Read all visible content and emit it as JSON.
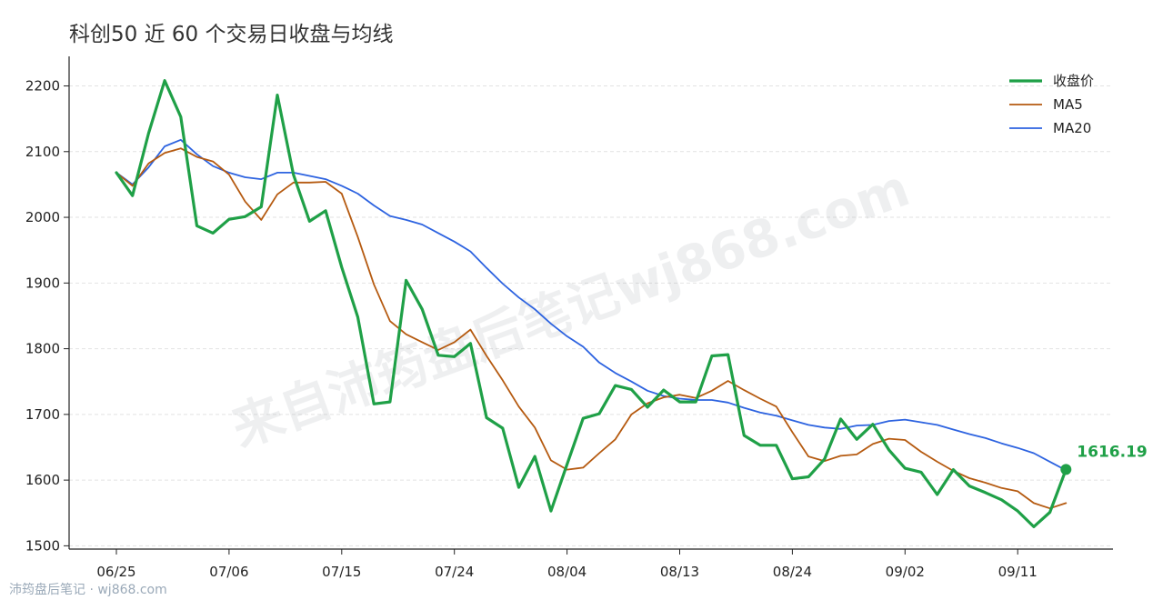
{
  "chart_data": {
    "type": "line",
    "title": "科创50 近 60 个交易日收盘与均线",
    "xlabel": "",
    "ylabel": "",
    "ylim": [
      1495,
      2245
    ],
    "yticks": [
      1500,
      1600,
      1700,
      1800,
      1900,
      2000,
      2100,
      2200
    ],
    "grid": true,
    "legend_position": "top-right",
    "x_tick_labels": [
      {
        "index": 0,
        "label": "06/25"
      },
      {
        "index": 7,
        "label": "07/06"
      },
      {
        "index": 14,
        "label": "07/15"
      },
      {
        "index": 21,
        "label": "07/24"
      },
      {
        "index": 28,
        "label": "08/04"
      },
      {
        "index": 35,
        "label": "08/13"
      },
      {
        "index": 42,
        "label": "08/24"
      },
      {
        "index": 49,
        "label": "09/02"
      },
      {
        "index": 56,
        "label": "09/11"
      }
    ],
    "series": [
      {
        "name": "收盘价",
        "color": "#1fa047",
        "values": [
          2068,
          2033,
          2128,
          2208,
          2153,
          1987,
          1976,
          1997,
          2001,
          2016,
          2186,
          2065,
          1994,
          2010,
          1924,
          1848,
          1716,
          1719,
          1904,
          1860,
          1790,
          1788,
          1808,
          1695,
          1679,
          1589,
          1636,
          1553,
          1624,
          1694,
          1701,
          1744,
          1738,
          1711,
          1737,
          1719,
          1719,
          1789,
          1791,
          1668,
          1653,
          1653,
          1602,
          1605,
          1632,
          1693,
          1662,
          1685,
          1646,
          1618,
          1612,
          1578,
          1616,
          1591,
          1581,
          1570,
          1553,
          1529,
          1551,
          1616.19
        ]
      },
      {
        "name": "MA5",
        "color": "#b55a10",
        "start_index": 0,
        "values": [
          2068,
          2048,
          2082,
          2098,
          2105,
          2092,
          2085,
          2065,
          2024,
          1996,
          2035,
          2053,
          2053,
          2054,
          2036,
          1970,
          1898,
          1842,
          1822,
          1810,
          1798,
          1810,
          1829,
          1789,
          1752,
          1712,
          1680,
          1630,
          1616,
          1619,
          1641,
          1662,
          1700,
          1717,
          1726,
          1730,
          1725,
          1736,
          1751,
          1737,
          1724,
          1712,
          1673,
          1636,
          1629,
          1637,
          1639,
          1655,
          1663,
          1661,
          1643,
          1628,
          1614,
          1603,
          1596,
          1588,
          1583,
          1565,
          1557,
          1565
        ]
      },
      {
        "name": "MA20",
        "color": "#2d63e0",
        "start_index": 0,
        "values": [
          2068,
          2050,
          2076,
          2108,
          2118,
          2096,
          2078,
          2068,
          2061,
          2058,
          2068,
          2068,
          2063,
          2058,
          2048,
          2036,
          2018,
          2002,
          1996,
          1989,
          1976,
          1963,
          1948,
          1923,
          1899,
          1878,
          1860,
          1838,
          1819,
          1803,
          1779,
          1763,
          1750,
          1736,
          1728,
          1724,
          1722,
          1722,
          1718,
          1710,
          1703,
          1698,
          1691,
          1684,
          1680,
          1678,
          1683,
          1684,
          1690,
          1692,
          1688,
          1684,
          1677,
          1670,
          1664,
          1656,
          1649,
          1641,
          1628,
          1615
        ]
      }
    ],
    "last_value_label": "1616.19"
  },
  "watermark": "来自沛筠盘后笔记wj868.com",
  "footer": "沛筠盘后笔记 · wj868.com"
}
